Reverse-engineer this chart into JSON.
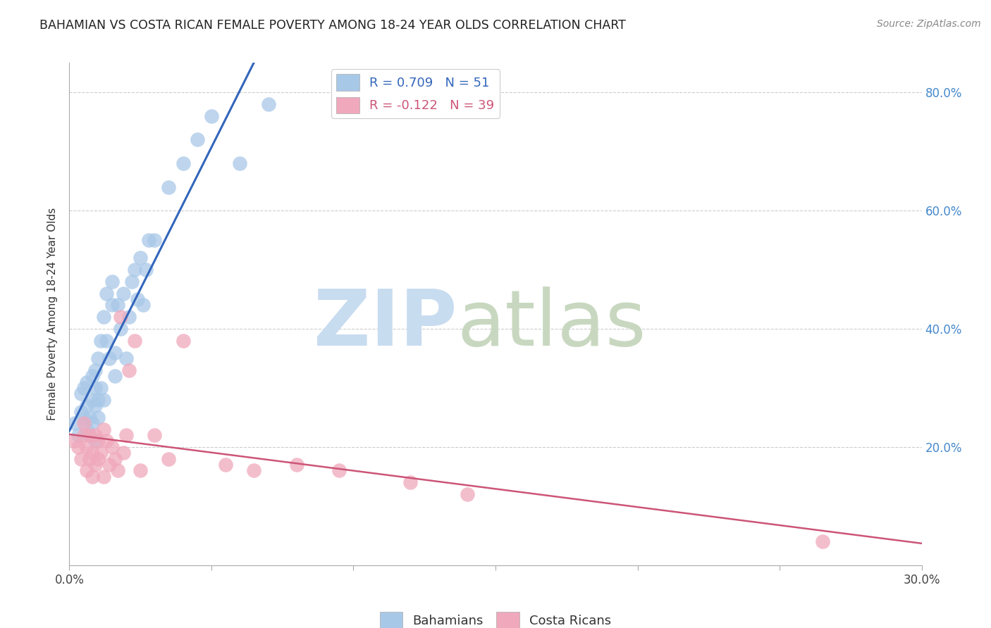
{
  "title": "BAHAMIAN VS COSTA RICAN FEMALE POVERTY AMONG 18-24 YEAR OLDS CORRELATION CHART",
  "source": "Source: ZipAtlas.com",
  "ylabel": "Female Poverty Among 18-24 Year Olds",
  "xlim": [
    0.0,
    0.3
  ],
  "ylim": [
    0.0,
    0.85
  ],
  "xticks": [
    0.0,
    0.05,
    0.1,
    0.15,
    0.2,
    0.25,
    0.3
  ],
  "xticklabels": [
    "0.0%",
    "",
    "",
    "",
    "",
    "",
    "30.0%"
  ],
  "yticks": [
    0.0,
    0.2,
    0.4,
    0.6,
    0.8
  ],
  "yticklabels_right": [
    "",
    "20.0%",
    "40.0%",
    "60.0%",
    "80.0%"
  ],
  "legend_r1": "R = 0.709",
  "legend_n1": "N = 51",
  "legend_r2": "R = -0.122",
  "legend_n2": "N = 39",
  "blue_color": "#A8C8E8",
  "pink_color": "#F0A8BC",
  "blue_line_color": "#3366BB",
  "pink_line_color": "#CC5577",
  "grid_color": "#CCCCCC",
  "bahamians_x": [
    0.002,
    0.003,
    0.004,
    0.004,
    0.005,
    0.005,
    0.006,
    0.006,
    0.006,
    0.007,
    0.007,
    0.008,
    0.008,
    0.008,
    0.009,
    0.009,
    0.009,
    0.009,
    0.01,
    0.01,
    0.01,
    0.011,
    0.011,
    0.012,
    0.012,
    0.013,
    0.013,
    0.014,
    0.015,
    0.015,
    0.016,
    0.016,
    0.017,
    0.018,
    0.019,
    0.02,
    0.021,
    0.022,
    0.023,
    0.024,
    0.025,
    0.026,
    0.027,
    0.028,
    0.03,
    0.035,
    0.04,
    0.045,
    0.05,
    0.06,
    0.07
  ],
  "bahamians_y": [
    0.24,
    0.22,
    0.26,
    0.29,
    0.25,
    0.3,
    0.23,
    0.27,
    0.31,
    0.22,
    0.25,
    0.28,
    0.24,
    0.32,
    0.21,
    0.27,
    0.3,
    0.33,
    0.25,
    0.28,
    0.35,
    0.3,
    0.38,
    0.28,
    0.42,
    0.38,
    0.46,
    0.35,
    0.44,
    0.48,
    0.32,
    0.36,
    0.44,
    0.4,
    0.46,
    0.35,
    0.42,
    0.48,
    0.5,
    0.45,
    0.52,
    0.44,
    0.5,
    0.55,
    0.55,
    0.64,
    0.68,
    0.72,
    0.76,
    0.68,
    0.78
  ],
  "costaricans_x": [
    0.002,
    0.003,
    0.004,
    0.005,
    0.005,
    0.006,
    0.006,
    0.007,
    0.007,
    0.008,
    0.008,
    0.009,
    0.009,
    0.01,
    0.01,
    0.011,
    0.012,
    0.012,
    0.013,
    0.014,
    0.015,
    0.016,
    0.017,
    0.018,
    0.019,
    0.02,
    0.021,
    0.023,
    0.025,
    0.03,
    0.035,
    0.04,
    0.055,
    0.065,
    0.08,
    0.095,
    0.12,
    0.14,
    0.265
  ],
  "costaricans_y": [
    0.21,
    0.2,
    0.18,
    0.22,
    0.24,
    0.2,
    0.16,
    0.18,
    0.22,
    0.15,
    0.19,
    0.17,
    0.22,
    0.18,
    0.21,
    0.19,
    0.15,
    0.23,
    0.21,
    0.17,
    0.2,
    0.18,
    0.16,
    0.42,
    0.19,
    0.22,
    0.33,
    0.38,
    0.16,
    0.22,
    0.18,
    0.38,
    0.17,
    0.16,
    0.17,
    0.16,
    0.14,
    0.12,
    0.04
  ]
}
